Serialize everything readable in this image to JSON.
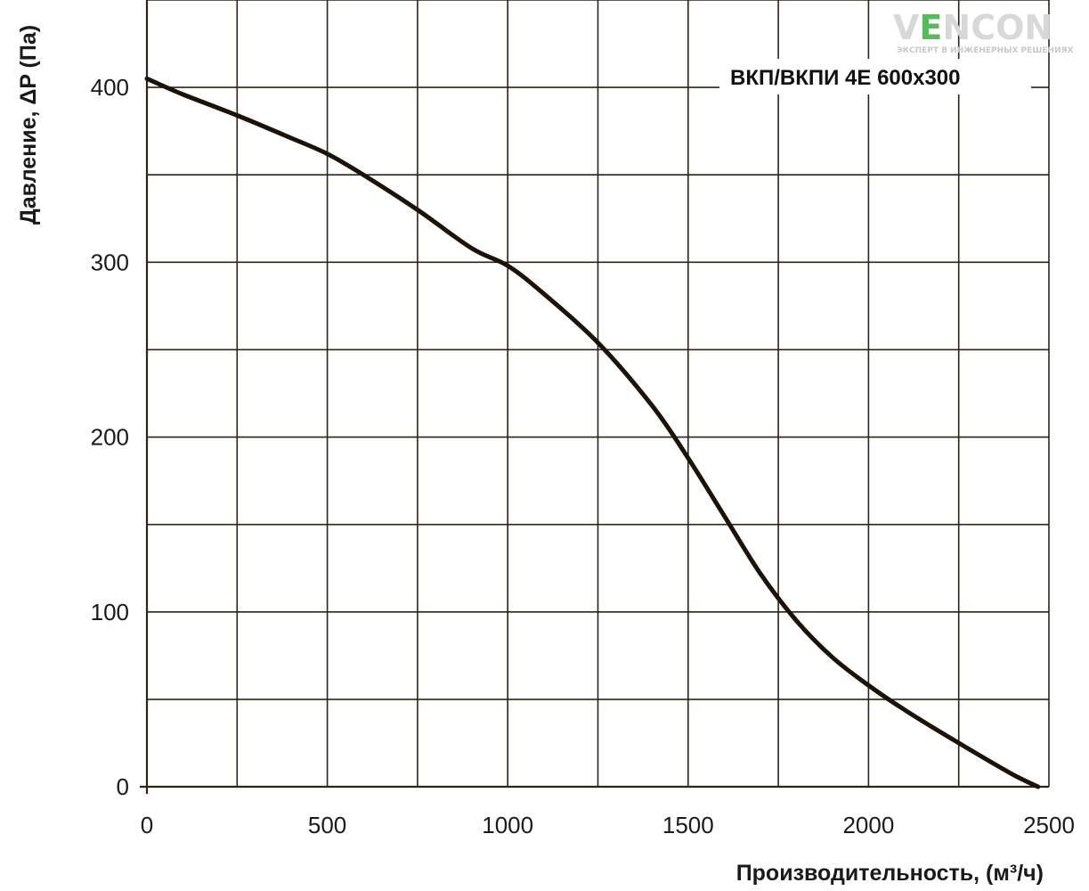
{
  "colors": {
    "grid": "#2b2418",
    "curve": "#1c1208",
    "text": "#1a1a1a",
    "logo_gray": "#d8d8d8",
    "logo_green": "#5cb85c"
  },
  "logo": {
    "main_text": "VENCON",
    "tagline": "ЭКСПЕРТ В ИНЖЕНЕРНЫХ РЕШЕНИЯХ"
  },
  "chart_data": {
    "type": "line",
    "title": "ВКП/ВКПИ 4Е 600x300",
    "xlabel": "Производительность, (м³/ч)",
    "ylabel": "Давление, ΔP (Па)",
    "xlim": [
      0,
      2500
    ],
    "ylim": [
      0,
      450
    ],
    "x_ticks": [
      0,
      500,
      1000,
      1500,
      2000,
      2500
    ],
    "y_ticks": [
      0,
      100,
      200,
      300,
      400
    ],
    "x_grid_step": 250,
    "y_grid_step": 50,
    "grid": true,
    "series": [
      {
        "x": [
          0,
          100,
          250,
          400,
          500,
          600,
          750,
          900,
          1000,
          1100,
          1250,
          1400,
          1500,
          1600,
          1700,
          1800,
          1900,
          2000,
          2100,
          2250,
          2400,
          2470
        ],
        "y": [
          405,
          396,
          384,
          371,
          362,
          350,
          330,
          308,
          298,
          282,
          254,
          218,
          188,
          155,
          122,
          95,
          74,
          58,
          44,
          25,
          7,
          0
        ]
      }
    ]
  }
}
